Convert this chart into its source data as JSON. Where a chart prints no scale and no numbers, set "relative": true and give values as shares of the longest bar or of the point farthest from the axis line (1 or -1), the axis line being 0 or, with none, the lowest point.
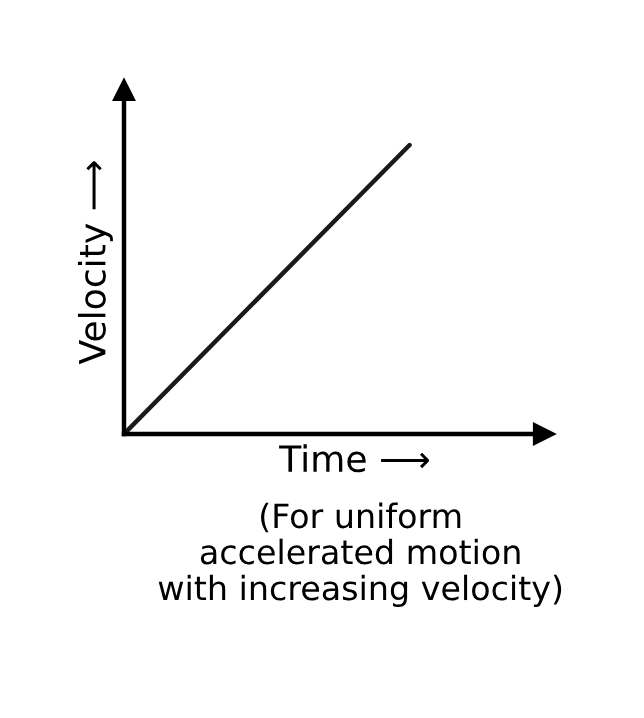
{
  "chart_data": {
    "type": "line",
    "relative": true,
    "xlabel": "Time ⟶",
    "ylabel": "Velocity ⟶",
    "categories": [
      null,
      null
    ],
    "series": [
      {
        "color": "#1a1a1a",
        "values": [
          0,
          1
        ]
      }
    ],
    "annotations": [
      "(For uniform\naccelerated motion\nwith increasing velocity)"
    ]
  }
}
